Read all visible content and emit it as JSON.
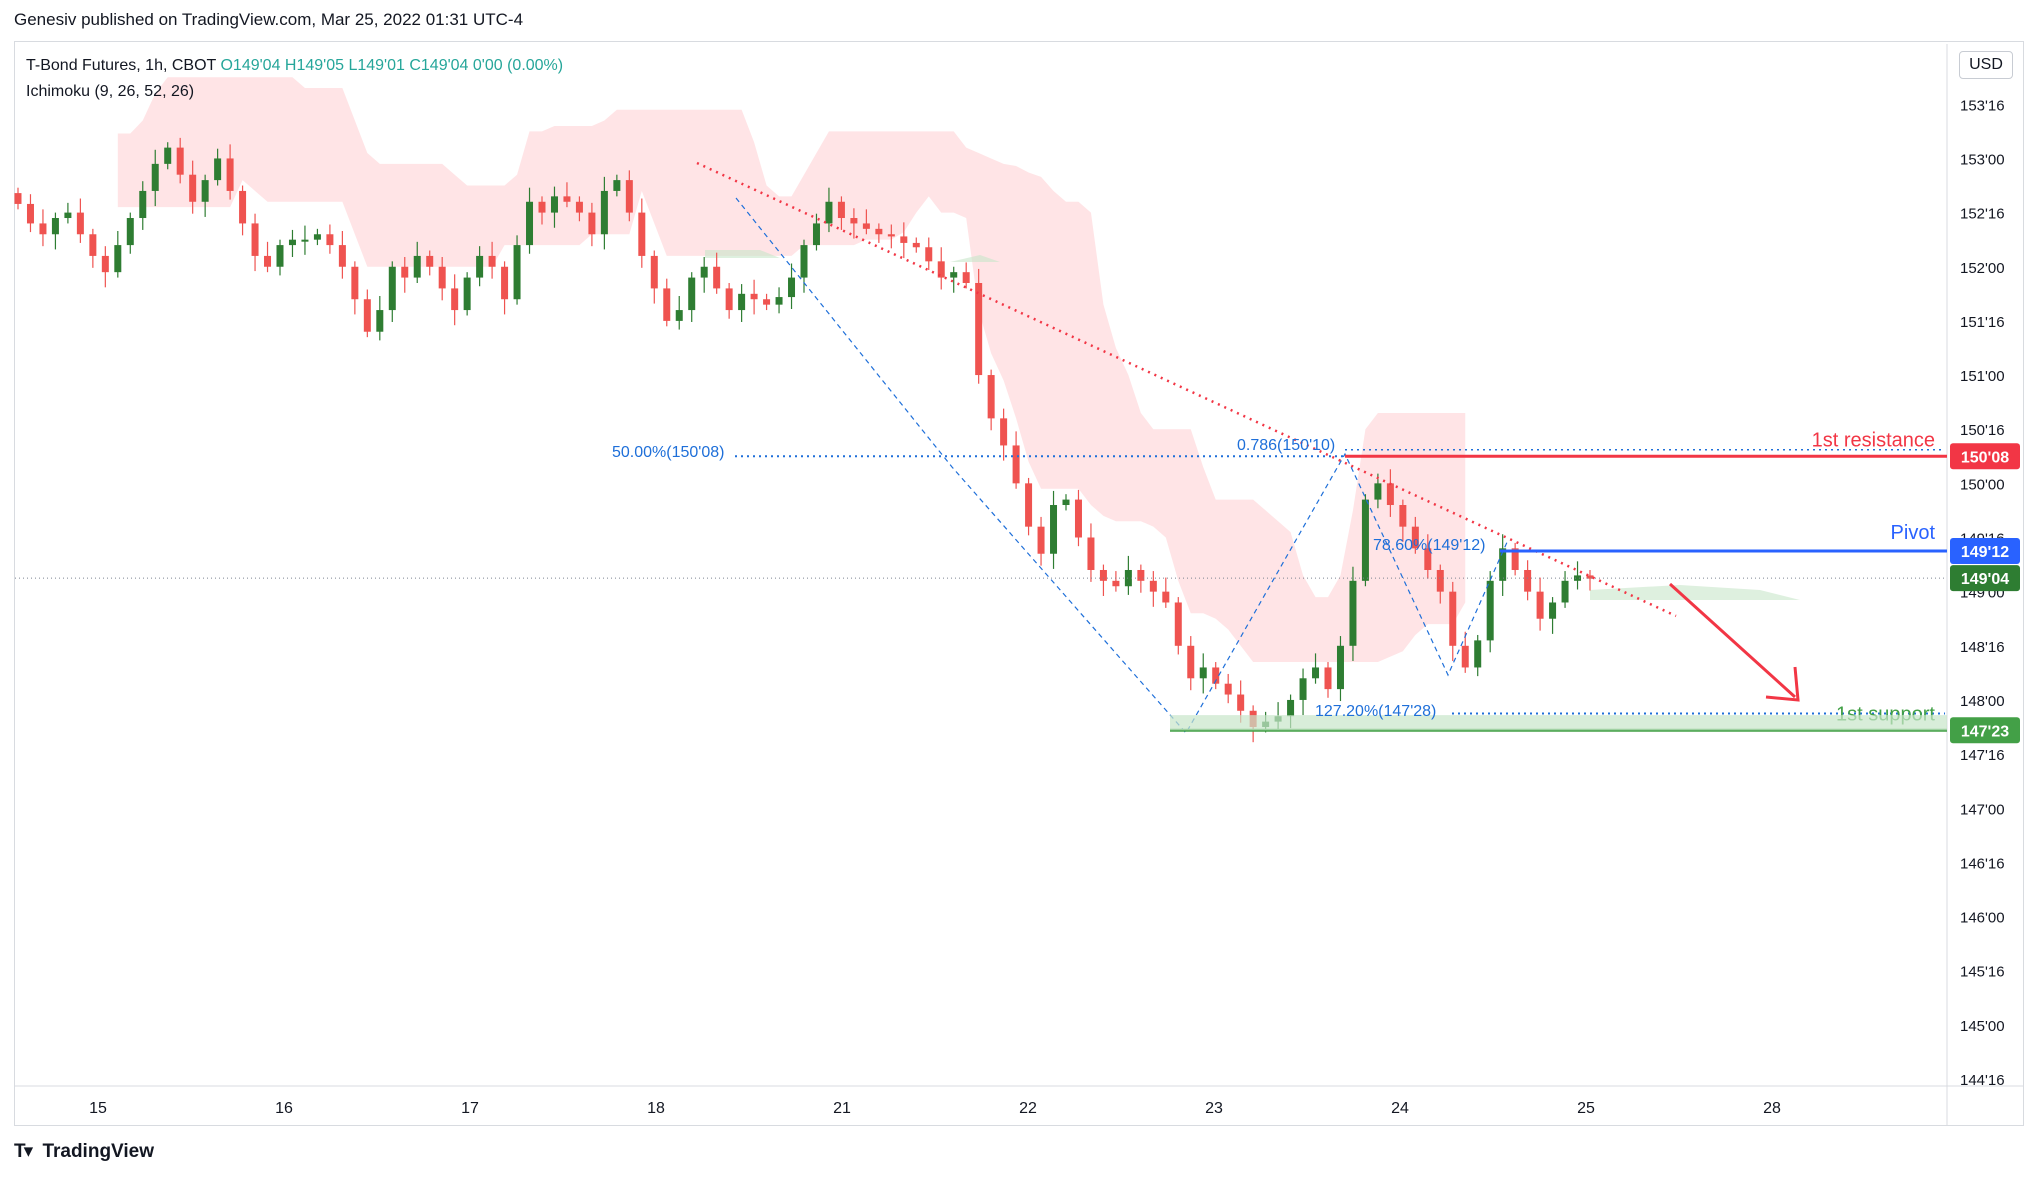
{
  "header": {
    "published_by": "Genesiv published on TradingView.com, Mar 25, 2022 01:31 UTC-4"
  },
  "legend": {
    "symbol": "T-Bond Futures, 1h, CBOT",
    "ohlc": "O149'04  H149'05  L149'01  C149'04  0'00 (0.00%)",
    "indicator": "Ichimoku (9, 26, 52, 26)"
  },
  "currency": "USD",
  "footer": {
    "brand": "TradingView"
  },
  "colors": {
    "up": "#2e7d32",
    "down": "#ef5350",
    "resistance": "#f23645",
    "pivot": "#2962ff",
    "support": "#43a047",
    "fib": "#1e6fd9",
    "cloud_bear": "#ffcdd2",
    "cloud_bull": "#c8e6c9"
  },
  "chart_data": {
    "type": "candlestick",
    "timeframe": "1h",
    "x_ticks": [
      "15",
      "16",
      "17",
      "18",
      "21",
      "22",
      "23",
      "24",
      "25",
      "28"
    ],
    "y_ticks": [
      "153'16",
      "153'00",
      "152'16",
      "152'00",
      "151'16",
      "151'00",
      "150'16",
      "150'00",
      "149'16",
      "149'00",
      "148'16",
      "148'00",
      "147'16",
      "147'00",
      "146'16",
      "146'00",
      "145'16",
      "145'00",
      "144'16"
    ],
    "ylim": [
      144.5,
      154.1
    ],
    "price_closes": [
      152.58,
      152.4,
      152.3,
      152.45,
      152.5,
      152.3,
      152.1,
      151.95,
      152.2,
      152.45,
      152.7,
      152.95,
      153.1,
      152.85,
      152.6,
      152.8,
      153.0,
      152.7,
      152.4,
      152.1,
      152.0,
      152.2,
      152.25,
      152.25,
      152.3,
      152.2,
      152.0,
      151.7,
      151.4,
      151.6,
      152.0,
      151.9,
      152.1,
      152.0,
      151.8,
      151.6,
      151.9,
      152.1,
      152.0,
      151.7,
      152.2,
      152.6,
      152.5,
      152.65,
      152.6,
      152.5,
      152.3,
      152.7,
      152.8,
      152.5,
      152.1,
      151.8,
      151.5,
      151.6,
      151.9,
      152.0,
      151.8,
      151.6,
      151.75,
      151.7,
      151.65,
      151.72,
      151.9,
      152.2,
      152.4,
      152.6,
      152.45,
      152.4,
      152.35,
      152.3,
      152.28,
      152.22,
      152.18,
      152.05,
      151.9,
      151.95,
      151.85,
      151.0,
      150.6,
      150.35,
      150.0,
      149.6,
      149.35,
      149.8,
      149.85,
      149.5,
      149.2,
      149.1,
      149.05,
      149.2,
      149.1,
      149.0,
      148.9,
      148.5,
      148.2,
      148.3,
      148.15,
      148.05,
      147.9,
      147.75,
      147.8,
      147.85,
      148.0,
      148.2,
      148.3,
      148.1,
      148.5,
      149.1,
      149.85,
      150.0,
      149.8,
      149.6,
      149.4,
      149.2,
      149.0,
      148.5,
      148.3,
      148.55,
      149.1,
      149.4,
      149.2,
      149.0,
      148.75,
      148.9,
      149.1,
      149.15,
      149.12
    ],
    "price_labels": [
      {
        "label": "150'08",
        "value": 150.25,
        "color": "#f23645"
      },
      {
        "label": "149'12",
        "value": 149.375,
        "color": "#2962ff"
      },
      {
        "label": "149'04",
        "value": 149.125,
        "color": "#2e7d32"
      },
      {
        "label": "147'23",
        "value": 147.72,
        "color": "#43a047"
      }
    ],
    "levels": [
      {
        "name": "1st resistance",
        "value": 150.25,
        "color": "#f23645"
      },
      {
        "name": "Pivot",
        "value": 149.375,
        "color": "#2962ff"
      },
      {
        "name": "1st support",
        "value": 147.72,
        "color": "#43a047"
      }
    ],
    "fib_annotations": [
      "50.00%(150'08)",
      "0.786(150'10)",
      "78.60%(149'12)",
      "127.20%(147'28)"
    ],
    "current_price": 149.125
  }
}
